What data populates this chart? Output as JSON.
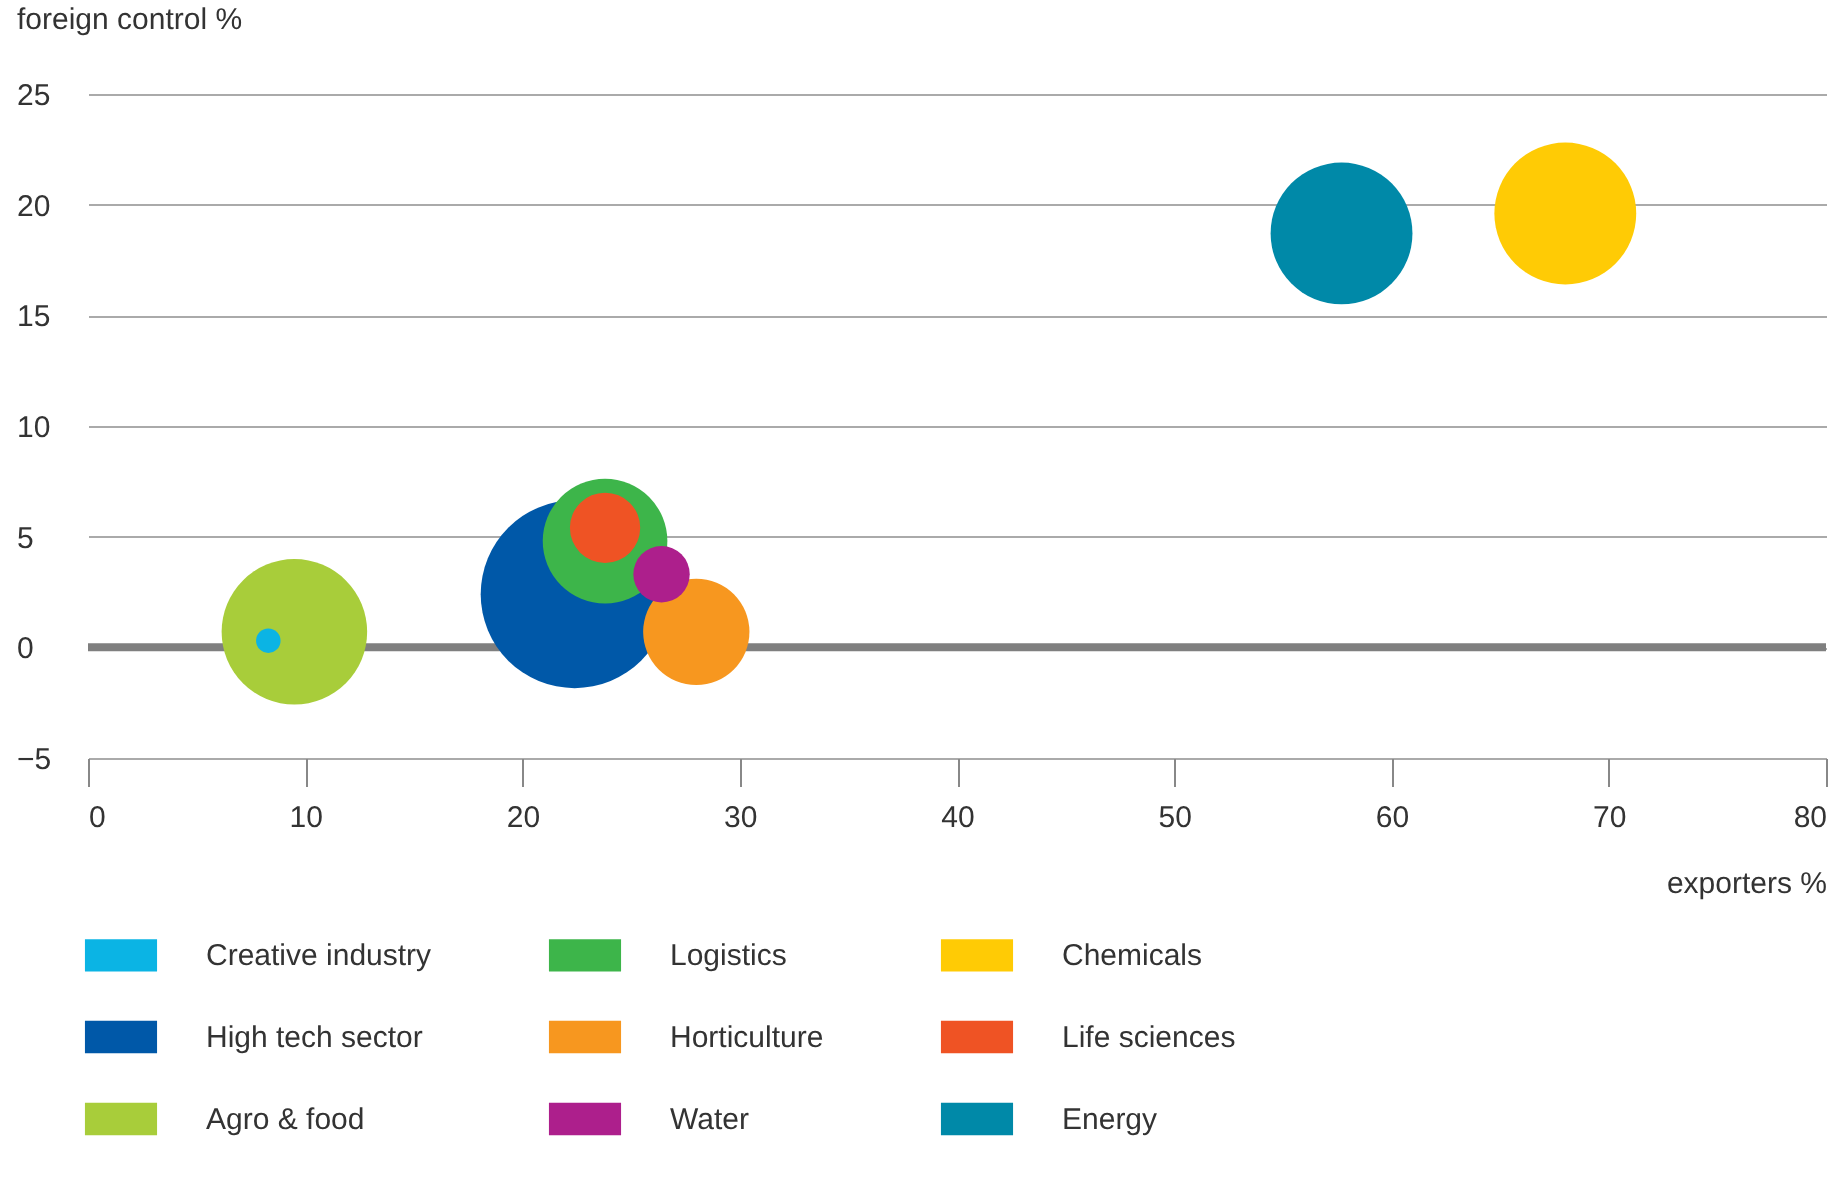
{
  "chart_data": {
    "type": "bubble",
    "xlabel": "exporters %",
    "ylabel": "foreign control %",
    "xlim": [
      0,
      80
    ],
    "xticks": [
      0,
      10,
      20,
      30,
      40,
      50,
      60,
      70,
      80
    ],
    "ylim": [
      -5,
      25
    ],
    "yticks": [
      -5,
      0,
      5,
      10,
      15,
      20,
      25
    ],
    "grid": "y",
    "legend": "bottom",
    "ref_lines": [
      {
        "axis": "y",
        "value": 0,
        "color": "#7f7f7f"
      }
    ],
    "series": [
      {
        "name": "Creative industry",
        "color": "#0bb4e4",
        "x": [
          8.3
        ],
        "values": [
          0.3
        ],
        "sizes": [
          0.017
        ]
      },
      {
        "name": "Logistics",
        "color": "#3db54a",
        "x": [
          23.8
        ],
        "values": [
          4.8
        ],
        "sizes": [
          0.44
        ]
      },
      {
        "name": "Chemicals",
        "color": "#ffcb05",
        "x": [
          68.0
        ],
        "values": [
          19.6
        ],
        "sizes": [
          0.57
        ]
      },
      {
        "name": "High tech sector",
        "color": "#0058a8",
        "x": [
          22.4
        ],
        "values": [
          2.4
        ],
        "sizes": [
          1
        ]
      },
      {
        "name": "Horticulture",
        "color": "#f7971f",
        "x": [
          28.0
        ],
        "values": [
          0.7
        ],
        "sizes": [
          0.32
        ]
      },
      {
        "name": "Life sciences",
        "color": "#ef5324",
        "x": [
          23.8
        ],
        "values": [
          5.4
        ],
        "sizes": [
          0.14
        ]
      },
      {
        "name": "Agro & food",
        "color": "#a8cd3a",
        "x": [
          9.5
        ],
        "values": [
          0.7
        ],
        "sizes": [
          0.6
        ]
      },
      {
        "name": "Water",
        "color": "#ad1f8c",
        "x": [
          26.4
        ],
        "values": [
          3.3
        ],
        "sizes": [
          0.09
        ]
      },
      {
        "name": "Energy",
        "color": "#0089a8",
        "x": [
          57.7
        ],
        "values": [
          18.7
        ],
        "sizes": [
          0.57
        ]
      }
    ]
  }
}
